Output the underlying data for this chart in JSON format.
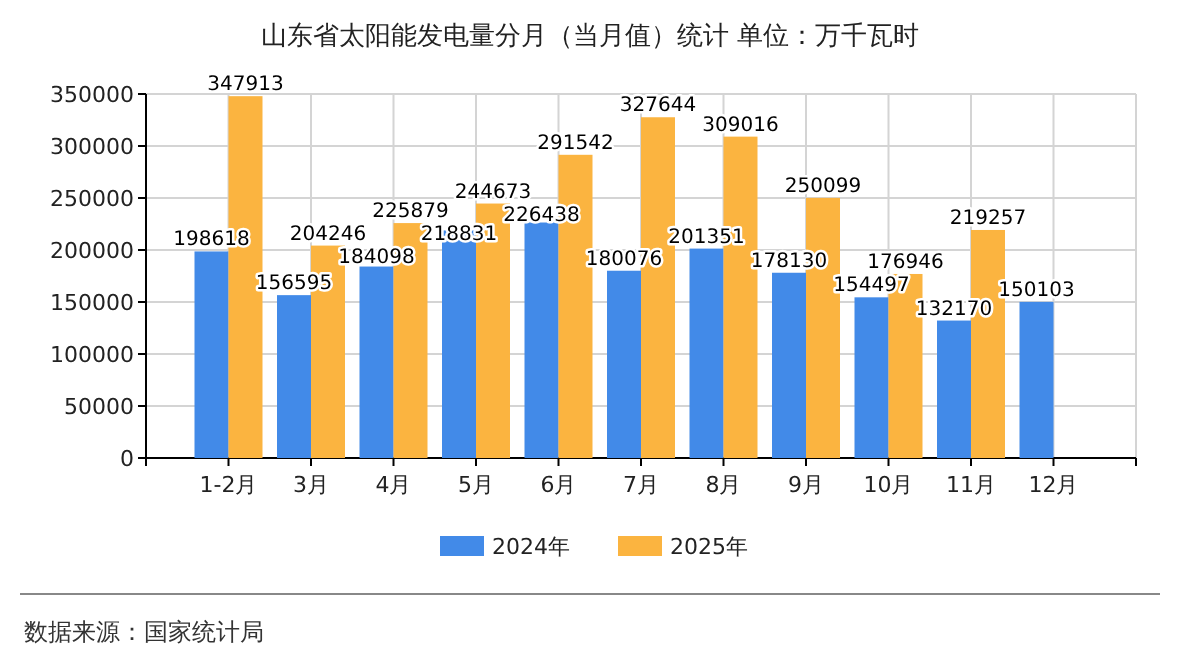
{
  "chart_data": {
    "type": "bar",
    "title": "山东省太阳能发电量分月（当月值）统计  单位：万千瓦时",
    "categories": [
      "1-2月",
      "3月",
      "4月",
      "5月",
      "6月",
      "7月",
      "8月",
      "9月",
      "10月",
      "11月",
      "12月"
    ],
    "series": [
      {
        "name": "2024年",
        "color": "#428ae8",
        "values": [
          198618,
          156595,
          184098,
          218831,
          226438,
          180076,
          201351,
          178130,
          154497,
          132170,
          150103
        ]
      },
      {
        "name": "2025年",
        "color": "#fbb440",
        "values": [
          347913,
          204246,
          225879,
          244673,
          291542,
          327644,
          309016,
          250099,
          176946,
          219257,
          null
        ]
      }
    ],
    "ylim": [
      0,
      350000
    ],
    "yticks": [
      0,
      50000,
      100000,
      150000,
      200000,
      250000,
      300000,
      350000
    ],
    "grid": true,
    "legend": "bottom",
    "data_labels": true,
    "annotations": [
      "数据来源：国家统计局"
    ]
  }
}
